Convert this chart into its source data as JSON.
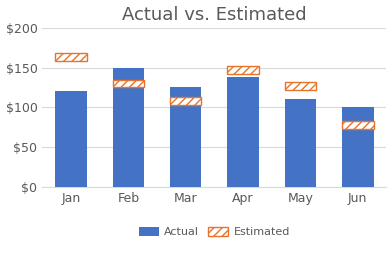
{
  "title": "Actual vs. Estimated",
  "categories": [
    "Jan",
    "Feb",
    "Mar",
    "Apr",
    "May",
    "Jun"
  ],
  "actual": [
    120,
    150,
    125,
    138,
    110,
    100
  ],
  "estimated": [
    163,
    130,
    108,
    147,
    127,
    78
  ],
  "actual_color": "#4472C4",
  "estimated_face_color": "#FFFFFF",
  "estimated_edge_color": "#E8732A",
  "estimated_hatch": "////",
  "estimated_bar_height": 10,
  "ylim": [
    0,
    200
  ],
  "yticks": [
    0,
    50,
    100,
    150,
    200
  ],
  "ytick_labels": [
    "$0",
    "$50",
    "$100",
    "$150",
    "$200"
  ],
  "background_color": "#ffffff",
  "grid_color": "#D9D9D9",
  "title_color": "#595959",
  "title_fontsize": 13,
  "tick_fontsize": 9,
  "legend_fontsize": 8,
  "bar_width": 0.55
}
